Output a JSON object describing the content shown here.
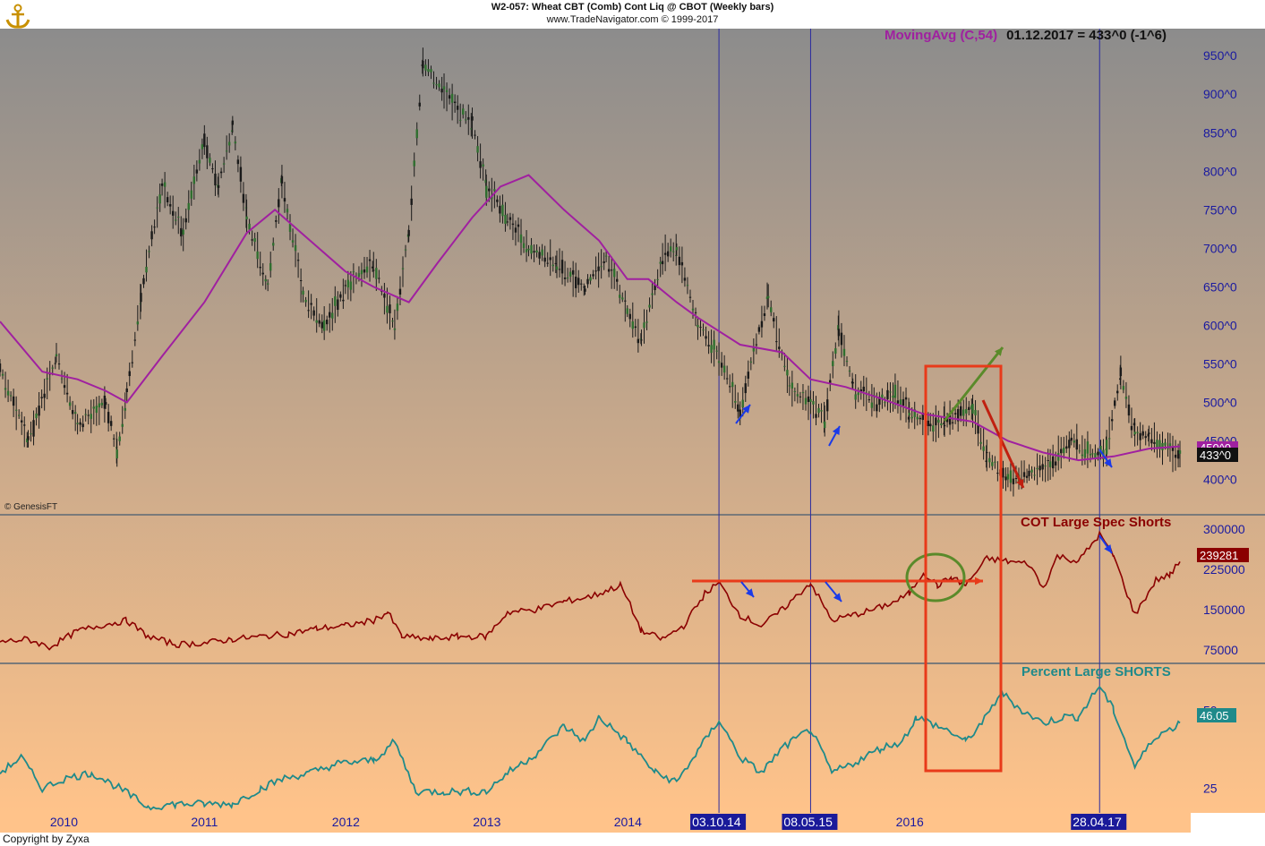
{
  "header": {
    "title": "W2-057:  Wheat CBT (Comb) Cont Liq @ CBOT  (Weekly bars)",
    "subtitle": "www.TradeNavigator.com © 1999-2017",
    "copyright": "Copyright by Zyxa",
    "source_mark": "© GenesisFT",
    "logo_icon": "anchor-logo-icon"
  },
  "moving_average": {
    "label": "MovingAvg (C,54)",
    "value_text": "01.12.2017 = 433^0 (-1^6)",
    "color": "#a020a0"
  },
  "colors": {
    "price_bars": "#1a1a1a",
    "ma_line": "#a020a0",
    "cot_line": "#8b0000",
    "pct_line": "#1f8a8a",
    "axis_text": "#1a1aa0",
    "vertical_markers": "#2a2aa0",
    "annotation_red": "#e83a1a",
    "annotation_green": "#5a8a2a",
    "annotation_blue": "#1a3ae8",
    "bg_top": "#8c8c8c",
    "bg_bottom": "#ffc38a"
  },
  "chart_data": [
    {
      "type": "candlestick",
      "title": "W2-057:  Wheat CBT (Comb) Cont Liq @ CBOT  (Weekly bars)",
      "ylim": [
        380,
        970
      ],
      "y_ticks": [
        "400^0",
        "450^0",
        "500^0",
        "550^0",
        "600^0",
        "650^0",
        "700^0",
        "750^0",
        "800^0",
        "850^0",
        "900^0",
        "950^0"
      ],
      "last_value_label": "433^0",
      "ma_current_label": "450^0",
      "price_keypoints": [
        [
          "2009.55",
          545
        ],
        [
          "2009.75",
          450
        ],
        [
          "2009.95",
          560
        ],
        [
          "2010.1",
          470
        ],
        [
          "2010.3",
          500
        ],
        [
          "2010.38",
          435
        ],
        [
          "2010.45",
          510
        ],
        [
          "2010.55",
          640
        ],
        [
          "2010.7",
          780
        ],
        [
          "2010.85",
          720
        ],
        [
          "2011.0",
          840
        ],
        [
          "2011.1",
          780
        ],
        [
          "2011.2",
          860
        ],
        [
          "2011.3",
          740
        ],
        [
          "2011.45",
          650
        ],
        [
          "2011.55",
          790
        ],
        [
          "2011.7",
          640
        ],
        [
          "2011.85",
          600
        ],
        [
          "2012.0",
          650
        ],
        [
          "2012.2",
          680
        ],
        [
          "2012.35",
          600
        ],
        [
          "2012.45",
          720
        ],
        [
          "2012.55",
          940
        ],
        [
          "2012.7",
          900
        ],
        [
          "2012.9",
          860
        ],
        [
          "2013.0",
          780
        ],
        [
          "2013.15",
          740
        ],
        [
          "2013.3",
          700
        ],
        [
          "2013.5",
          680
        ],
        [
          "2013.7",
          650
        ],
        [
          "2013.85",
          690
        ],
        [
          "2014.0",
          620
        ],
        [
          "2014.1",
          580
        ],
        [
          "2014.25",
          690
        ],
        [
          "2014.35",
          700
        ],
        [
          "2014.5",
          600
        ],
        [
          "2014.65",
          560
        ],
        [
          "2014.8",
          490
        ],
        [
          "2015.0",
          640
        ],
        [
          "2015.15",
          520
        ],
        [
          "2015.3",
          500
        ],
        [
          "2015.4",
          480
        ],
        [
          "2015.5",
          600
        ],
        [
          "2015.6",
          520
        ],
        [
          "2015.75",
          500
        ],
        [
          "2015.9",
          510
        ],
        [
          "2016.0",
          490
        ],
        [
          "2016.15",
          470
        ],
        [
          "2016.25",
          480
        ],
        [
          "2016.45",
          490
        ],
        [
          "2016.55",
          430
        ],
        [
          "2016.7",
          400
        ],
        [
          "2016.85",
          410
        ],
        [
          "2017.0",
          420
        ],
        [
          "2017.15",
          450
        ],
        [
          "2017.3",
          430
        ],
        [
          "2017.4",
          440
        ],
        [
          "2017.5",
          540
        ],
        [
          "2017.6",
          460
        ],
        [
          "2017.7",
          455
        ],
        [
          "2017.85",
          440
        ],
        [
          "2017.92",
          433
        ]
      ],
      "ma_keypoints": [
        [
          "2009.55",
          605
        ],
        [
          "2009.85",
          540
        ],
        [
          "2010.1",
          530
        ],
        [
          "2010.3",
          515
        ],
        [
          "2010.45",
          500
        ],
        [
          "2010.7",
          560
        ],
        [
          "2011.0",
          630
        ],
        [
          "2011.3",
          720
        ],
        [
          "2011.5",
          750
        ],
        [
          "2011.75",
          710
        ],
        [
          "2012.0",
          670
        ],
        [
          "2012.2",
          650
        ],
        [
          "2012.45",
          630
        ],
        [
          "2012.65",
          680
        ],
        [
          "2012.9",
          740
        ],
        [
          "2013.1",
          780
        ],
        [
          "2013.3",
          795
        ],
        [
          "2013.55",
          750
        ],
        [
          "2013.8",
          710
        ],
        [
          "2014.0",
          660
        ],
        [
          "2014.15",
          660
        ],
        [
          "2014.35",
          630
        ],
        [
          "2014.5",
          610
        ],
        [
          "2014.8",
          575
        ],
        [
          "2015.1",
          565
        ],
        [
          "2015.3",
          530
        ],
        [
          "2015.55",
          520
        ],
        [
          "2015.8",
          505
        ],
        [
          "2016.1",
          485
        ],
        [
          "2016.45",
          475
        ],
        [
          "2016.7",
          450
        ],
        [
          "2016.95",
          435
        ],
        [
          "2017.2",
          425
        ],
        [
          "2017.45",
          430
        ],
        [
          "2017.7",
          440
        ],
        [
          "2017.92",
          443
        ]
      ],
      "vertical_markers": [
        {
          "x": "2014.65",
          "label": "03.10.14"
        },
        {
          "x": "2015.3",
          "label": "08.05.15"
        },
        {
          "x": "2017.35",
          "label": "28.04.17"
        }
      ]
    },
    {
      "type": "line",
      "series": [
        {
          "name": "COT Large Spec Shorts"
        }
      ],
      "ylim": [
        60000,
        310000
      ],
      "y_ticks": [
        "75000",
        "150000",
        "225000",
        "300000"
      ],
      "last_value_label": "239281",
      "keypoints": [
        [
          "2009.55",
          90000
        ],
        [
          "2009.75",
          95000
        ],
        [
          "2009.9",
          80000
        ],
        [
          "2010.1",
          110000
        ],
        [
          "2010.25",
          120000
        ],
        [
          "2010.45",
          130000
        ],
        [
          "2010.6",
          100000
        ],
        [
          "2010.8",
          85000
        ],
        [
          "2011.0",
          88000
        ],
        [
          "2011.2",
          95000
        ],
        [
          "2011.4",
          100000
        ],
        [
          "2011.6",
          105000
        ],
        [
          "2011.8",
          115000
        ],
        [
          "2012.0",
          120000
        ],
        [
          "2012.2",
          130000
        ],
        [
          "2012.3",
          145000
        ],
        [
          "2012.4",
          100000
        ],
        [
          "2012.6",
          95000
        ],
        [
          "2012.8",
          100000
        ],
        [
          "2013.0",
          100000
        ],
        [
          "2013.15",
          145000
        ],
        [
          "2013.35",
          150000
        ],
        [
          "2013.55",
          165000
        ],
        [
          "2013.75",
          175000
        ],
        [
          "2013.95",
          195000
        ],
        [
          "2014.0",
          170000
        ],
        [
          "2014.1",
          110000
        ],
        [
          "2014.25",
          95000
        ],
        [
          "2014.4",
          120000
        ],
        [
          "2014.55",
          180000
        ],
        [
          "2014.65",
          200000
        ],
        [
          "2014.8",
          140000
        ],
        [
          "2014.95",
          120000
        ],
        [
          "2015.1",
          150000
        ],
        [
          "2015.3",
          200000
        ],
        [
          "2015.45",
          130000
        ],
        [
          "2015.6",
          140000
        ],
        [
          "2015.75",
          150000
        ],
        [
          "2015.9",
          165000
        ],
        [
          "2016.0",
          180000
        ],
        [
          "2016.1",
          220000
        ],
        [
          "2016.2",
          195000
        ],
        [
          "2016.3",
          210000
        ],
        [
          "2016.4",
          195000
        ],
        [
          "2016.55",
          245000
        ],
        [
          "2016.7",
          240000
        ],
        [
          "2016.85",
          235000
        ],
        [
          "2016.95",
          190000
        ],
        [
          "2017.05",
          250000
        ],
        [
          "2017.2",
          240000
        ],
        [
          "2017.35",
          290000
        ],
        [
          "2017.45",
          250000
        ],
        [
          "2017.6",
          140000
        ],
        [
          "2017.75",
          205000
        ],
        [
          "2017.85",
          215000
        ],
        [
          "2017.92",
          239281
        ]
      ]
    },
    {
      "type": "line",
      "series": [
        {
          "name": "Percent Large SHORTS"
        }
      ],
      "ylim": [
        18,
        62
      ],
      "y_ticks": [
        "25",
        "50"
      ],
      "last_value_label": "46.05",
      "keypoints": [
        [
          "2009.55",
          30
        ],
        [
          "2009.7",
          35
        ],
        [
          "2009.85",
          25
        ],
        [
          "2010.0",
          28
        ],
        [
          "2010.2",
          30
        ],
        [
          "2010.4",
          25
        ],
        [
          "2010.6",
          19
        ],
        [
          "2010.8",
          20
        ],
        [
          "2011.0",
          20
        ],
        [
          "2011.2",
          20
        ],
        [
          "2011.4",
          25
        ],
        [
          "2011.55",
          28
        ],
        [
          "2011.75",
          30
        ],
        [
          "2011.95",
          33
        ],
        [
          "2012.2",
          34
        ],
        [
          "2012.35",
          40
        ],
        [
          "2012.5",
          24
        ],
        [
          "2012.7",
          24
        ],
        [
          "2013.0",
          24
        ],
        [
          "2013.15",
          30
        ],
        [
          "2013.35",
          36
        ],
        [
          "2013.55",
          45
        ],
        [
          "2013.7",
          40
        ],
        [
          "2013.8",
          48
        ],
        [
          "2014.0",
          40
        ],
        [
          "2014.2",
          30
        ],
        [
          "2014.35",
          27
        ],
        [
          "2014.5",
          37
        ],
        [
          "2014.65",
          47
        ],
        [
          "2014.8",
          35
        ],
        [
          "2014.95",
          30
        ],
        [
          "2015.1",
          38
        ],
        [
          "2015.3",
          44
        ],
        [
          "2015.45",
          30
        ],
        [
          "2015.6",
          33
        ],
        [
          "2015.8",
          38
        ],
        [
          "2015.95",
          40
        ],
        [
          "2016.05",
          48
        ],
        [
          "2016.15",
          46
        ],
        [
          "2016.3",
          43
        ],
        [
          "2016.4",
          40
        ],
        [
          "2016.55",
          48
        ],
        [
          "2016.65",
          56
        ],
        [
          "2016.8",
          50
        ],
        [
          "2016.95",
          46
        ],
        [
          "2017.1",
          48
        ],
        [
          "2017.2",
          48
        ],
        [
          "2017.35",
          58
        ],
        [
          "2017.45",
          50
        ],
        [
          "2017.6",
          32
        ],
        [
          "2017.75",
          42
        ],
        [
          "2017.85",
          44
        ],
        [
          "2017.92",
          46.05
        ]
      ]
    }
  ],
  "x_axis": {
    "labels": [
      {
        "x": "2010",
        "text": "2010"
      },
      {
        "x": "2011",
        "text": "2011"
      },
      {
        "x": "2012",
        "text": "2012"
      },
      {
        "x": "2013",
        "text": "2013"
      },
      {
        "x": "2014",
        "text": "2014"
      },
      {
        "x": "2016",
        "text": "2016"
      }
    ],
    "highlighted": [
      {
        "x": "2014.65",
        "text": "03.10.14",
        "prefix": ""
      },
      {
        "x": "2015.3",
        "text": "08.05.15",
        "prefix": "201"
      },
      {
        "x": "2017.35",
        "text": "28.04.17",
        "prefix": "20"
      }
    ]
  }
}
